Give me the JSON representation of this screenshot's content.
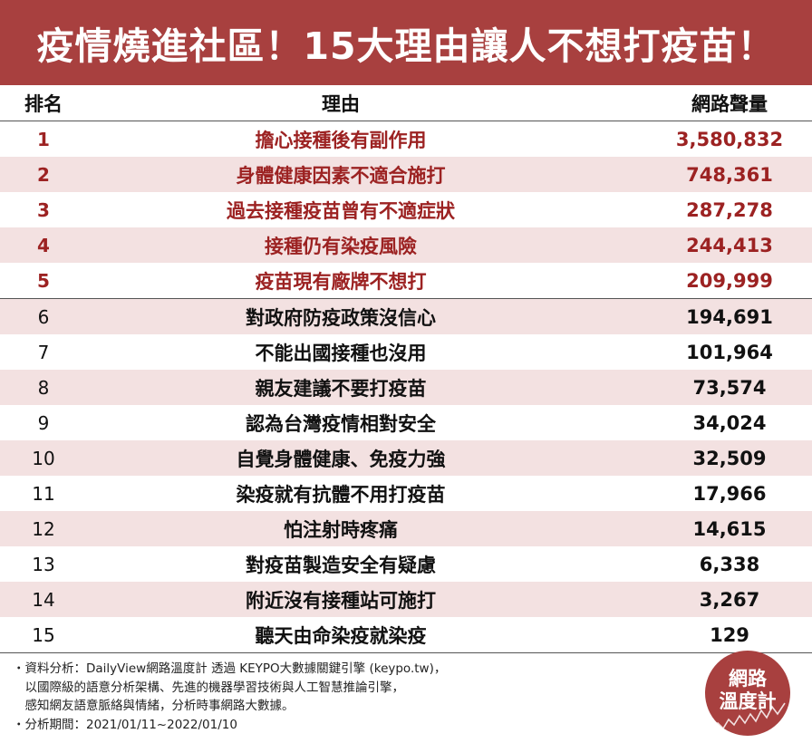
{
  "title": "疫情燒進社區！15大理由讓人不想打疫苗！",
  "columns": {
    "rank": "排名",
    "reason": "理由",
    "volume": "網路聲量"
  },
  "chart_data": {
    "type": "table",
    "title": "疫情燒進社區！15大理由讓人不想打疫苗！",
    "columns": [
      "排名",
      "理由",
      "網路聲量"
    ],
    "rows": [
      {
        "rank": "1",
        "reason": "擔心接種後有副作用",
        "volume": "3,580,832",
        "value": 3580832
      },
      {
        "rank": "2",
        "reason": "身體健康因素不適合施打",
        "volume": "748,361",
        "value": 748361
      },
      {
        "rank": "3",
        "reason": "過去接種疫苗曾有不適症狀",
        "volume": "287,278",
        "value": 287278
      },
      {
        "rank": "4",
        "reason": "接種仍有染疫風險",
        "volume": "244,413",
        "value": 244413
      },
      {
        "rank": "5",
        "reason": "疫苗現有廠牌不想打",
        "volume": "209,999",
        "value": 209999
      },
      {
        "rank": "6",
        "reason": "對政府防疫政策沒信心",
        "volume": "194,691",
        "value": 194691
      },
      {
        "rank": "7",
        "reason": "不能出國接種也沒用",
        "volume": "101,964",
        "value": 101964
      },
      {
        "rank": "8",
        "reason": "親友建議不要打疫苗",
        "volume": "73,574",
        "value": 73574
      },
      {
        "rank": "9",
        "reason": "認為台灣疫情相對安全",
        "volume": "34,024",
        "value": 34024
      },
      {
        "rank": "10",
        "reason": "自覺身體健康、免疫力強",
        "volume": "32,509",
        "value": 32509
      },
      {
        "rank": "11",
        "reason": "染疫就有抗體不用打疫苗",
        "volume": "17,966",
        "value": 17966
      },
      {
        "rank": "12",
        "reason": "怕注射時疼痛",
        "volume": "14,615",
        "value": 14615
      },
      {
        "rank": "13",
        "reason": "對疫苗製造安全有疑慮",
        "volume": "6,338",
        "value": 6338
      },
      {
        "rank": "14",
        "reason": "附近沒有接種站可施打",
        "volume": "3,267",
        "value": 3267
      },
      {
        "rank": "15",
        "reason": "聽天由命染疫就染疫",
        "volume": "129",
        "value": 129
      }
    ],
    "highlight_color": "#9c2222",
    "highlight_rows": 5
  },
  "footer": {
    "lines": [
      "・資料分析：DailyView網路溫度計 透過 KEYPO大數據關鍵引擎 (keypo.tw)，",
      "　以國際級的語意分析架構、先進的機器學習技術與人工智慧推論引擎，",
      "　感知網友語意脈絡與情緒，分析時事網路大數據。",
      "・分析期間：2021/01/11~2022/01/10"
    ]
  },
  "logo": {
    "line1": "網路",
    "line2": "溫度計"
  },
  "colors": {
    "banner": "#a8403f",
    "row_alt": "#f3e1e1",
    "highlight_text": "#9c2222"
  }
}
